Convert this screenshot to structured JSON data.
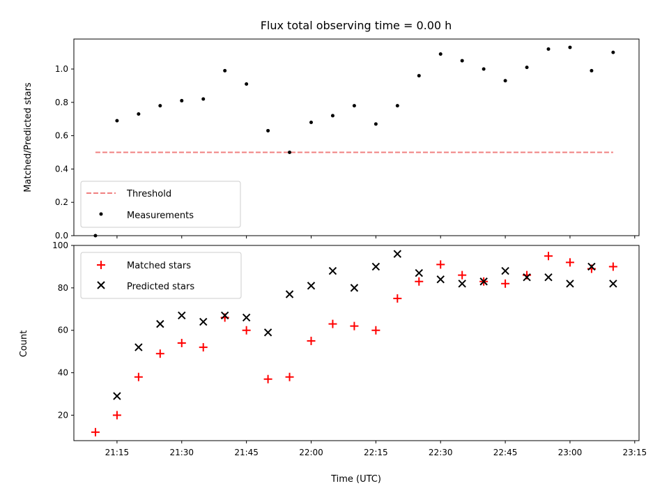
{
  "chart_data": [
    {
      "type": "scatter",
      "title": "Flux total observing time = 0.00 h",
      "ylabel": "Matched/Predicted stars",
      "xlabel": "",
      "ylim": [
        0,
        1.18
      ],
      "y_ticks": [
        "0.0",
        "0.2",
        "0.4",
        "0.6",
        "0.8",
        "1.0"
      ],
      "legend_position": "lower-left",
      "threshold": {
        "name": "Threshold",
        "value": 0.5,
        "x_start": "21:10",
        "x_end": "23:10",
        "color": "#f08080",
        "style": "dashed"
      },
      "series": [
        {
          "name": "Measurements",
          "color": "#000000",
          "x": [
            "21:10",
            "21:15",
            "21:20",
            "21:25",
            "21:30",
            "21:35",
            "21:40",
            "21:45",
            "21:50",
            "21:55",
            "22:00",
            "22:05",
            "22:10",
            "22:15",
            "22:20",
            "22:25",
            "22:30",
            "22:35",
            "22:40",
            "22:45",
            "22:50",
            "22:55",
            "23:00",
            "23:05",
            "23:10"
          ],
          "values": [
            0.0,
            0.69,
            0.73,
            0.78,
            0.81,
            0.82,
            0.99,
            0.91,
            0.63,
            0.5,
            0.68,
            0.72,
            0.78,
            0.67,
            0.78,
            0.96,
            1.09,
            1.05,
            1.0,
            0.93,
            1.01,
            1.12,
            1.13,
            0.99,
            1.1
          ]
        }
      ]
    },
    {
      "type": "scatter",
      "xlabel": "Time (UTC)",
      "ylabel": "Count",
      "ylim": [
        8,
        100
      ],
      "y_ticks": [
        "20",
        "40",
        "60",
        "80",
        "100"
      ],
      "x_ticks": [
        "21:15",
        "21:30",
        "21:45",
        "22:00",
        "22:15",
        "22:30",
        "22:45",
        "23:00",
        "23:15"
      ],
      "xlim": [
        "21:05",
        "23:16"
      ],
      "legend_position": "top-left",
      "series": [
        {
          "name": "Matched stars",
          "marker": "plus",
          "color": "#ff0000",
          "x": [
            "21:10",
            "21:15",
            "21:20",
            "21:25",
            "21:30",
            "21:35",
            "21:40",
            "21:45",
            "21:50",
            "21:55",
            "22:00",
            "22:05",
            "22:10",
            "22:15",
            "22:20",
            "22:25",
            "22:30",
            "22:35",
            "22:40",
            "22:45",
            "22:50",
            "22:55",
            "23:00",
            "23:05",
            "23:10"
          ],
          "values": [
            12,
            20,
            38,
            49,
            54,
            52,
            66,
            60,
            37,
            38,
            55,
            63,
            62,
            60,
            75,
            83,
            91,
            86,
            83,
            82,
            86,
            95,
            92,
            89,
            90
          ]
        },
        {
          "name": "Predicted stars",
          "marker": "x",
          "color": "#000000",
          "x": [
            "21:15",
            "21:20",
            "21:25",
            "21:30",
            "21:35",
            "21:40",
            "21:45",
            "21:50",
            "21:55",
            "22:00",
            "22:05",
            "22:10",
            "22:15",
            "22:20",
            "22:25",
            "22:30",
            "22:35",
            "22:40",
            "22:45",
            "22:50",
            "22:55",
            "23:00",
            "23:05",
            "23:10"
          ],
          "values": [
            29,
            52,
            63,
            67,
            64,
            67,
            66,
            59,
            77,
            81,
            88,
            80,
            90,
            96,
            87,
            84,
            82,
            83,
            88,
            85,
            85,
            82,
            90,
            82
          ]
        }
      ]
    }
  ]
}
